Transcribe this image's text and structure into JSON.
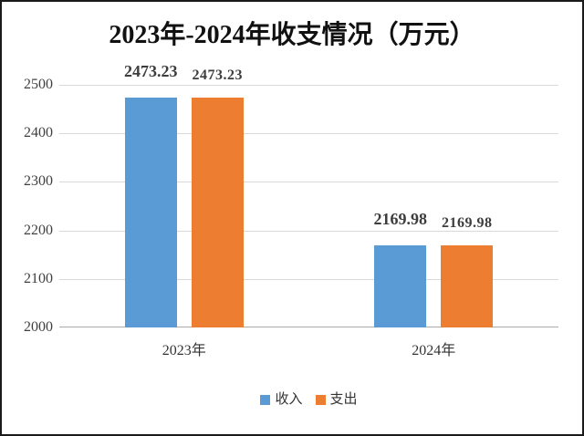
{
  "frame": {
    "background": "#ffffff",
    "border_color": "#1a1a1a"
  },
  "chart_data": {
    "type": "bar",
    "title": "2023年-2024年收支情况（万元）",
    "categories": [
      "2023年",
      "2024年"
    ],
    "series": [
      {
        "name": "收入",
        "color": "#5B9BD5",
        "values": [
          2473.23,
          2169.98
        ],
        "data_labels": [
          "2473.23",
          "2169.98"
        ]
      },
      {
        "name": "支出",
        "color": "#ED7D31",
        "values": [
          2473.23,
          2169.98
        ],
        "data_labels": [
          "2473.23",
          "2169.98"
        ]
      }
    ],
    "xlabel": "",
    "ylabel": "",
    "ylim": [
      2000,
      2500
    ],
    "yticks": [
      2000,
      2100,
      2200,
      2300,
      2400,
      2500
    ],
    "grid": true,
    "data_labels_shown": true,
    "legend_position": "bottom",
    "colors": {
      "gridline": "#d9d9d9",
      "axis_line": "#ababab",
      "tick_text": "#404040",
      "data_label_text": "#3d3d3d",
      "title_text": "#111111"
    }
  }
}
